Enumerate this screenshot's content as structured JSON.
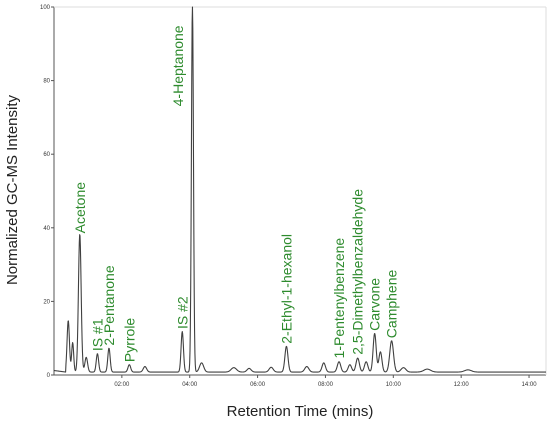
{
  "chart_data": {
    "type": "line",
    "title": "",
    "xlabel": "Retention Time (mins)",
    "ylabel": "Normalized GC-MS Intensity",
    "xlim": [
      0,
      14.5
    ],
    "ylim": [
      0,
      100
    ],
    "grid": false,
    "x_ticks": [
      {
        "value": 2,
        "label": "02:00"
      },
      {
        "value": 4,
        "label": "04:00"
      },
      {
        "value": 6,
        "label": "06:00"
      },
      {
        "value": 8,
        "label": "08:00"
      },
      {
        "value": 10,
        "label": "10:00"
      },
      {
        "value": 12,
        "label": "12:00"
      },
      {
        "value": 14,
        "label": "14:00"
      }
    ],
    "y_ticks": [
      {
        "value": 0,
        "label": "0"
      },
      {
        "value": 20,
        "label": "20"
      },
      {
        "value": 40,
        "label": "40"
      },
      {
        "value": 60,
        "label": "60"
      },
      {
        "value": 80,
        "label": "80"
      },
      {
        "value": 100,
        "label": "100"
      }
    ],
    "series": [
      {
        "color": "#404040",
        "baseline": 0.8,
        "peaks": [
          {
            "t": 0.42,
            "h": 14,
            "w": 0.035
          },
          {
            "t": 0.55,
            "h": 8,
            "w": 0.03
          },
          {
            "t": 0.76,
            "h": 37.5,
            "w": 0.04
          },
          {
            "t": 0.95,
            "h": 4,
            "w": 0.04
          },
          {
            "t": 1.28,
            "h": 5,
            "w": 0.035
          },
          {
            "t": 1.62,
            "h": 6.5,
            "w": 0.035
          },
          {
            "t": 2.22,
            "h": 2,
            "w": 0.04
          },
          {
            "t": 2.68,
            "h": 1.5,
            "w": 0.05
          },
          {
            "t": 3.78,
            "h": 11,
            "w": 0.035
          },
          {
            "t": 4.08,
            "h": 100,
            "w": 0.03
          },
          {
            "t": 4.35,
            "h": 2.5,
            "w": 0.06
          },
          {
            "t": 5.3,
            "h": 1.2,
            "w": 0.08
          },
          {
            "t": 5.75,
            "h": 1,
            "w": 0.06
          },
          {
            "t": 6.4,
            "h": 1.3,
            "w": 0.06
          },
          {
            "t": 6.85,
            "h": 7,
            "w": 0.045
          },
          {
            "t": 7.45,
            "h": 1.5,
            "w": 0.06
          },
          {
            "t": 7.95,
            "h": 2.5,
            "w": 0.05
          },
          {
            "t": 8.4,
            "h": 2.8,
            "w": 0.05
          },
          {
            "t": 8.72,
            "h": 2,
            "w": 0.05
          },
          {
            "t": 8.95,
            "h": 3.8,
            "w": 0.05
          },
          {
            "t": 9.2,
            "h": 2.8,
            "w": 0.05
          },
          {
            "t": 9.45,
            "h": 10.5,
            "w": 0.045
          },
          {
            "t": 9.62,
            "h": 5.5,
            "w": 0.045
          },
          {
            "t": 9.95,
            "h": 8.5,
            "w": 0.055
          },
          {
            "t": 10.3,
            "h": 1.2,
            "w": 0.07
          },
          {
            "t": 11.0,
            "h": 0.8,
            "w": 0.1
          },
          {
            "t": 12.2,
            "h": 0.6,
            "w": 0.1
          }
        ]
      }
    ],
    "annotations": [
      {
        "text": "Acetone",
        "x": 0.76,
        "y": 38.5
      },
      {
        "text": "IS #1",
        "x": 1.28,
        "y": 6.5
      },
      {
        "text": "2-Pentanone",
        "x": 1.62,
        "y": 8
      },
      {
        "text": "Pyrrole",
        "x": 2.22,
        "y": 3.5
      },
      {
        "text": "IS #2",
        "x": 3.78,
        "y": 12.5
      },
      {
        "text": "4-Heptanone",
        "x": 3.65,
        "y": 73
      },
      {
        "text": "2-Ethyl-1-hexanol",
        "x": 6.85,
        "y": 8.5
      },
      {
        "text": "1-Pentenylbenzene",
        "x": 8.4,
        "y": 4.5
      },
      {
        "text": "2,5-Dimethylbenzaldehyde",
        "x": 8.95,
        "y": 5.5
      },
      {
        "text": "Carvone",
        "x": 9.45,
        "y": 12
      },
      {
        "text": "Camphene",
        "x": 9.95,
        "y": 10
      }
    ]
  }
}
